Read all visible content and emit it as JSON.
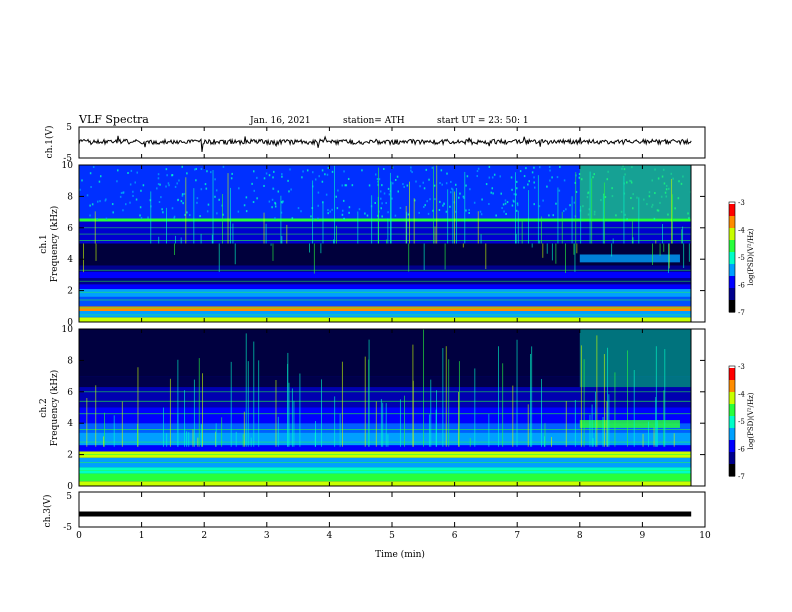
{
  "header": {
    "title": "VLF Spectra",
    "date": "Jan. 16, 2021",
    "station": "station= ATH",
    "start_time": "start  UT =   23: 50: 1"
  },
  "colors": {
    "background": "#ffffff",
    "axis": "#000000",
    "colormap": [
      "#000000",
      "#00008c",
      "#0000ff",
      "#00a0ff",
      "#00ffc8",
      "#28ff3c",
      "#c8ff00",
      "#ff8c00",
      "#ff0000",
      "#ffffff"
    ]
  },
  "chart_data": [
    {
      "type": "line",
      "ylabel": "ch.1(V)",
      "yticks": [
        "5",
        "-5"
      ],
      "ylim": [
        -5,
        5
      ],
      "xlim": [
        0,
        10
      ],
      "description_series": "voltage trace near 0 V with small noise",
      "baseline": 0.2
    },
    {
      "type": "heatmap",
      "ylabel_line1": "ch.1",
      "ylabel_line2": "Frequency (kHz)",
      "yticks": [
        "0",
        "2",
        "4",
        "6",
        "8",
        "10"
      ],
      "ylim": [
        0,
        10
      ],
      "xlim": [
        0,
        10
      ],
      "colorbar": {
        "label": "log(PSD)(V²/Hz)",
        "ticks": [
          "-3",
          "-4",
          "-5",
          "-6",
          "-7"
        ],
        "range": [
          -7,
          -3
        ]
      }
    },
    {
      "type": "heatmap",
      "ylabel_line1": "ch.2",
      "ylabel_line2": "Frequency (kHz)",
      "yticks": [
        "0",
        "2",
        "4",
        "6",
        "8",
        "10"
      ],
      "ylim": [
        0,
        10
      ],
      "xlim": [
        0,
        10
      ],
      "colorbar": {
        "label": "log(PSD)(V²/Hz)",
        "ticks": [
          "-3",
          "-4",
          "-5",
          "-6",
          "-7"
        ],
        "range": [
          -7,
          -3
        ]
      }
    },
    {
      "type": "line",
      "ylabel": "ch.3(V)",
      "yticks": [
        "5",
        "-5"
      ],
      "ylim": [
        -5,
        5
      ],
      "xlim": [
        0,
        10
      ],
      "baseline": -1.3
    }
  ],
  "xaxis": {
    "label": "Time  (min)",
    "ticks": [
      "0",
      "1",
      "2",
      "3",
      "4",
      "5",
      "6",
      "7",
      "8",
      "9",
      "10"
    ]
  }
}
